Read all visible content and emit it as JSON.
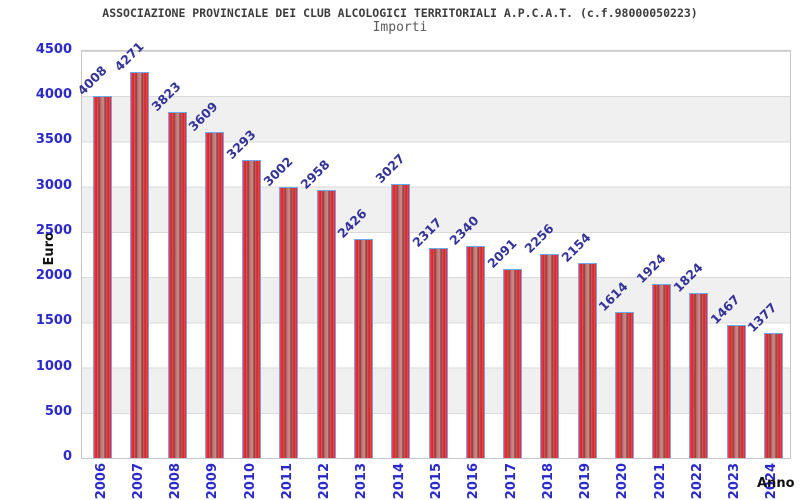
{
  "header": {
    "title": "ASSOCIAZIONE PROVINCIALE DEI CLUB ALCOLOGICI TERRITORIALI A.P.C.A.T. (c.f.98000050223)",
    "subtitle": "Importi"
  },
  "chart_data": {
    "type": "bar",
    "title": "ASSOCIAZIONE PROVINCIALE DEI CLUB ALCOLOGICI TERRITORIALI A.P.C.A.T. (c.f.98000050223)",
    "subtitle": "Importi",
    "xlabel": "Anno",
    "ylabel": "Euro",
    "categories": [
      "2006",
      "2007",
      "2008",
      "2009",
      "2010",
      "2011",
      "2012",
      "2013",
      "2014",
      "2015",
      "2016",
      "2017",
      "2018",
      "2019",
      "2020",
      "2021",
      "2022",
      "2023",
      "2024"
    ],
    "values": [
      4008,
      4271,
      3823,
      3609,
      3293,
      3002,
      2958,
      2426,
      3027,
      2317,
      2340,
      2091,
      2256,
      2154,
      1614,
      1924,
      1824,
      1467,
      1377
    ],
    "ylim": [
      0,
      4500
    ],
    "ytick_step": 500,
    "grid": "horizontal-bands",
    "legend": "none",
    "value_labels_rotation_deg": -45,
    "xtick_rotation_deg": -90
  },
  "colors": {
    "bar_edge_red": "#ee2b31",
    "bar_mid_red": "#a84a4a",
    "bar_center_highlight": "#cf9b9b",
    "bar_border": "#6fa8f0",
    "tick_label": "#2929cc",
    "value_label": "#333399",
    "band_gray": "#f0f0f0",
    "grid_line": "#dadada",
    "plot_border": "#c6c6c6",
    "title": "#3c3c3c",
    "subtitle": "#5c5c5c",
    "axis_title": "#111111"
  }
}
